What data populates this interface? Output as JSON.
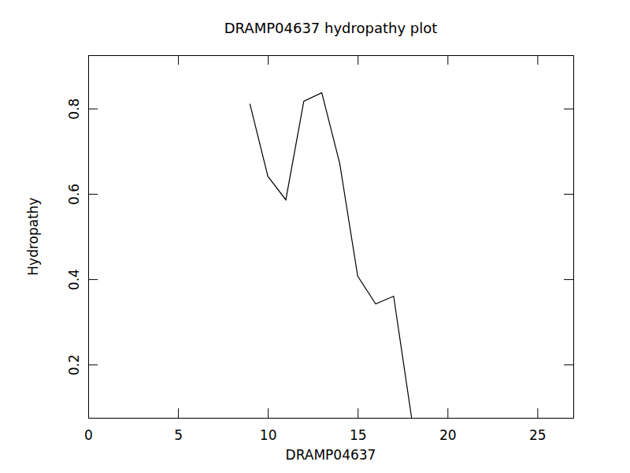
{
  "chart_data": {
    "type": "line",
    "title": "DRAMP04637 hydropathy plot",
    "x_label": "DRAMP04637",
    "y_label": "Hydropathy",
    "x": [
      9,
      10,
      11,
      12,
      13,
      14,
      15,
      16,
      17,
      18
    ],
    "values": [
      0.811,
      0.641,
      0.586,
      0.817,
      0.837,
      0.671,
      0.407,
      0.342,
      0.36,
      0.075
    ],
    "color": "#000000",
    "xlim": [
      0,
      27
    ],
    "ylim": [
      0.075,
      0.925
    ],
    "xticks": [
      0,
      5,
      10,
      15,
      20,
      25
    ],
    "yticks": [
      0.2,
      0.4,
      0.6,
      0.8
    ],
    "grid": false
  }
}
